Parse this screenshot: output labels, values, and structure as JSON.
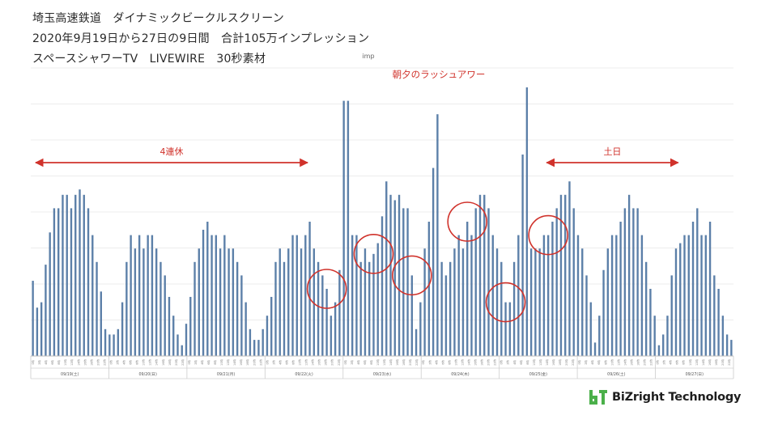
{
  "header": {
    "line1": "埼玉高速鉄道　ダイナミックビークルスクリーン",
    "line2": "2020年9月19日から27日の9日間　合計105万インプレッション",
    "line3": "スペースシャワーTV　LIVEWIRE　30秒素材"
  },
  "brand": {
    "logo_mark": "bT",
    "name": "BiZright Technology",
    "logo_color": "#4bb04a"
  },
  "colors": {
    "bar": "#5b7fa8",
    "annotation": "#d0322b",
    "grid": "#e6e6e6"
  },
  "chart_data": {
    "type": "bar",
    "ylabel": "imp",
    "ylim": [
      0,
      100
    ],
    "grid": true,
    "x_tick_labels": [
      "0時",
      "2時",
      "4時",
      "6時",
      "8時",
      "10時",
      "12時",
      "14時",
      "16時",
      "18時",
      "20時",
      "22時"
    ],
    "days": [
      "09/19(土)",
      "09/20(日)",
      "09/21(月)",
      "09/22(火)",
      "09/23(水)",
      "09/24(木)",
      "09/25(金)",
      "09/26(土)",
      "09/27(日)"
    ],
    "series": [
      {
        "values": [
          28,
          18,
          20,
          34,
          46,
          55,
          55,
          60,
          60,
          55,
          60,
          62,
          60,
          55,
          45,
          35,
          24,
          10,
          8,
          8,
          10,
          20,
          35,
          45,
          40,
          45,
          40,
          45,
          45,
          40,
          35,
          30,
          22,
          15,
          8,
          4,
          12,
          22,
          35,
          40,
          47,
          50,
          45,
          45,
          40,
          45,
          40,
          40,
          35,
          30,
          20,
          10,
          6,
          6,
          10,
          15,
          22,
          35,
          40,
          35,
          40,
          45,
          45,
          40,
          45,
          50,
          40,
          35,
          30,
          25,
          15,
          20,
          32,
          95,
          95,
          45,
          45,
          35,
          40,
          35,
          38,
          42,
          52,
          65,
          60,
          58,
          60,
          55,
          55,
          30,
          10,
          20,
          40,
          50,
          70,
          90,
          35,
          30,
          35,
          40,
          45,
          40,
          50,
          45,
          55,
          60,
          60,
          55,
          45,
          40,
          35,
          20,
          20,
          35,
          45,
          75,
          100,
          40,
          40,
          40,
          45,
          45,
          50,
          55,
          60,
          60,
          65,
          55,
          45,
          40,
          30,
          20,
          5,
          15,
          32,
          40,
          45,
          45,
          50,
          55,
          60,
          55,
          55,
          45,
          35,
          25,
          15,
          4,
          8,
          15,
          30,
          40,
          42,
          45,
          45,
          50,
          55,
          45,
          45,
          50,
          30,
          25,
          15,
          8,
          6
        ]
      }
    ],
    "annotations": [
      {
        "type": "arrow",
        "text": "4連休",
        "x_start": 0,
        "x_end": 65
      },
      {
        "type": "arrow",
        "text": "土日",
        "x_start": 120,
        "x_end": 152
      },
      {
        "type": "label",
        "text": "朝夕のラッシュアワー"
      },
      {
        "type": "circle",
        "index": 69
      },
      {
        "type": "circle",
        "index": 80
      },
      {
        "type": "circle",
        "index": 89
      },
      {
        "type": "circle",
        "index": 102
      },
      {
        "type": "circle",
        "index": 111
      },
      {
        "type": "circle",
        "index": 121
      }
    ]
  }
}
